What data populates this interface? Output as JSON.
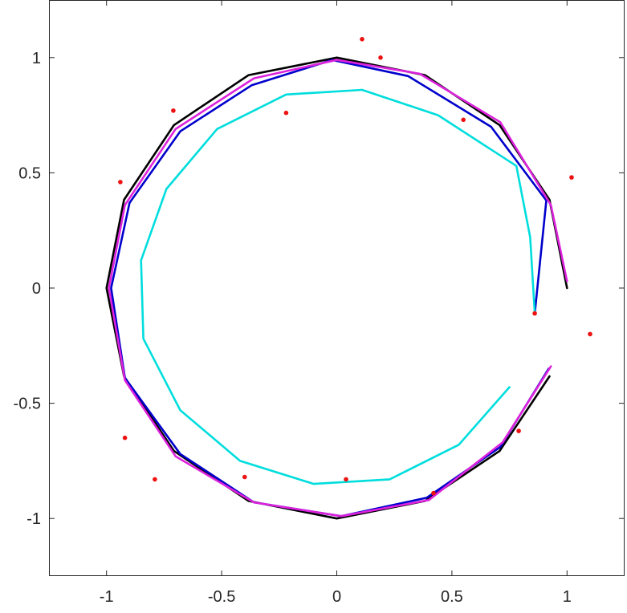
{
  "chart_data": {
    "type": "line",
    "title": "",
    "xlabel": "",
    "ylabel": "",
    "xlim": [
      -1.25,
      1.25
    ],
    "ylim": [
      -1.25,
      1.25
    ],
    "grid": false,
    "legend": "none",
    "xticks": [
      -1,
      -0.5,
      0,
      0.5,
      1
    ],
    "xtick_labels": [
      "-1",
      "-0.5",
      "0",
      "0.5",
      "1"
    ],
    "yticks": [
      -1,
      -0.5,
      0,
      0.5,
      1
    ],
    "ytick_labels": [
      "-1",
      "-0.5",
      "0",
      "0.5",
      "1"
    ],
    "series": [
      {
        "color": "#000000",
        "points": [
          [
            1.0,
            0.0
          ],
          [
            0.924,
            0.383
          ],
          [
            0.707,
            0.707
          ],
          [
            0.383,
            0.924
          ],
          [
            0.0,
            1.0
          ],
          [
            -0.383,
            0.924
          ],
          [
            -0.707,
            0.707
          ],
          [
            -0.924,
            0.383
          ],
          [
            -1.0,
            0.0
          ],
          [
            -0.924,
            -0.383
          ],
          [
            -0.707,
            -0.707
          ],
          [
            -0.383,
            -0.924
          ],
          [
            0.0,
            -1.0
          ],
          [
            0.383,
            -0.924
          ],
          [
            0.707,
            -0.707
          ],
          [
            0.924,
            -0.383
          ]
        ]
      },
      {
        "color": "#0000cc",
        "points": [
          [
            0.86,
            -0.11
          ],
          [
            0.91,
            0.38
          ],
          [
            0.67,
            0.7
          ],
          [
            0.31,
            0.92
          ],
          [
            -0.02,
            0.99
          ],
          [
            -0.37,
            0.88
          ],
          [
            -0.68,
            0.68
          ],
          [
            -0.9,
            0.37
          ],
          [
            -0.98,
            0.0
          ],
          [
            -0.92,
            -0.39
          ],
          [
            -0.68,
            -0.72
          ],
          [
            -0.36,
            -0.93
          ],
          [
            0.02,
            -0.99
          ],
          [
            0.39,
            -0.91
          ],
          [
            0.71,
            -0.69
          ],
          [
            0.92,
            -0.35
          ]
        ]
      },
      {
        "color": "#00dddd",
        "points": [
          [
            0.86,
            -0.11
          ],
          [
            0.84,
            0.22
          ],
          [
            0.78,
            0.53
          ],
          [
            0.44,
            0.75
          ],
          [
            0.11,
            0.86
          ],
          [
            -0.22,
            0.84
          ],
          [
            -0.52,
            0.69
          ],
          [
            -0.74,
            0.43
          ],
          [
            -0.85,
            0.12
          ],
          [
            -0.84,
            -0.22
          ],
          [
            -0.68,
            -0.53
          ],
          [
            -0.42,
            -0.75
          ],
          [
            -0.1,
            -0.85
          ],
          [
            0.23,
            -0.83
          ],
          [
            0.53,
            -0.68
          ],
          [
            0.75,
            -0.43
          ]
        ]
      },
      {
        "color": "#dd22dd",
        "points": [
          [
            1.0,
            0.03
          ],
          [
            0.93,
            0.36
          ],
          [
            0.71,
            0.72
          ],
          [
            0.36,
            0.93
          ],
          [
            0.0,
            0.99
          ],
          [
            -0.36,
            0.91
          ],
          [
            -0.7,
            0.69
          ],
          [
            -0.92,
            0.36
          ],
          [
            -0.99,
            0.0
          ],
          [
            -0.92,
            -0.4
          ],
          [
            -0.7,
            -0.73
          ],
          [
            -0.36,
            -0.93
          ],
          [
            0.02,
            -0.99
          ],
          [
            0.4,
            -0.92
          ],
          [
            0.72,
            -0.67
          ],
          [
            0.93,
            -0.34
          ]
        ]
      }
    ],
    "scatter": {
      "color": "#ee1111",
      "points": [
        [
          0.86,
          -0.11
        ],
        [
          1.02,
          0.48
        ],
        [
          0.55,
          0.73
        ],
        [
          0.19,
          1.0
        ],
        [
          0.11,
          1.08
        ],
        [
          -0.22,
          0.76
        ],
        [
          -0.71,
          0.77
        ],
        [
          -0.94,
          0.46
        ],
        [
          -0.92,
          -0.65
        ],
        [
          -0.79,
          -0.83
        ],
        [
          -0.4,
          -0.82
        ],
        [
          0.04,
          -0.83
        ],
        [
          0.42,
          -0.89
        ],
        [
          0.79,
          -0.62
        ],
        [
          1.1,
          -0.2
        ]
      ]
    }
  }
}
